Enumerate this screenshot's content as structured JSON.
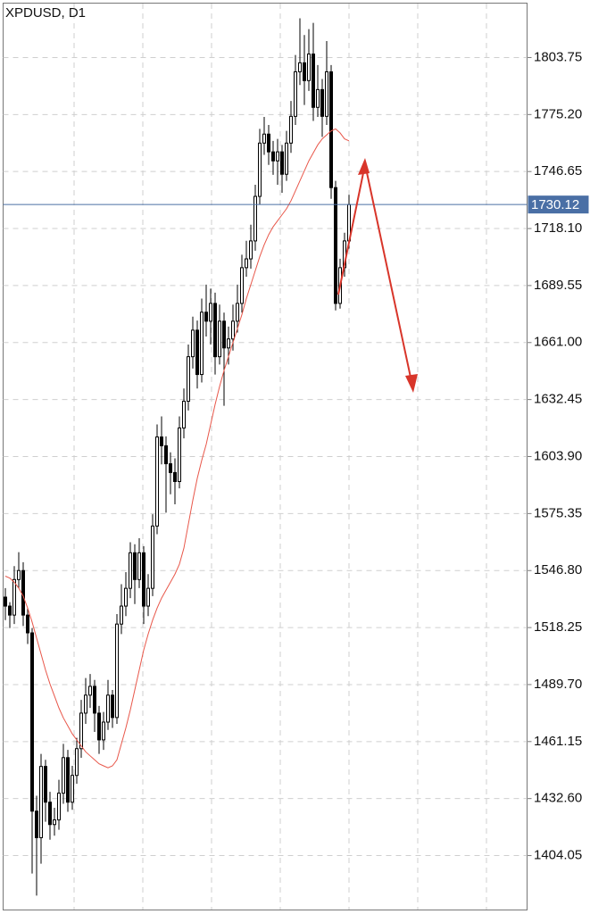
{
  "chart_data": {
    "type": "candlestick",
    "title": "XPDUSD, D1",
    "open": [
      1533.5,
      1529.0,
      1524.5,
      1542.3,
      1546.8,
      1524.5,
      1515.6,
      1426.3,
      1413.0,
      1448.7,
      1430.8,
      1419.6,
      1421.9,
      1435.3,
      1453.1,
      1430.8,
      1444.2,
      1457.6,
      1475.4,
      1484.4,
      1488.8,
      1475.4,
      1462.0,
      1470.9,
      1484.4,
      1473.2,
      1520.0,
      1529.0,
      1537.9,
      1555.7,
      1542.3,
      1555.7,
      1529.0,
      1537.9,
      1569.1,
      1613.7,
      1609.3,
      1600.3,
      1595.9,
      1591.4,
      1618.2,
      1631.6,
      1653.9,
      1667.2,
      1645.0,
      1676.2,
      1671.7,
      1680.6,
      1653.9,
      1671.7,
      1658.3,
      1662.8,
      1671.7,
      1680.6,
      1698.5,
      1702.9,
      1711.9,
      1734.2,
      1760.9,
      1765.4,
      1756.5,
      1752.0,
      1756.5,
      1745.3,
      1760.9,
      1774.3,
      1796.6,
      1801.1,
      1792.2,
      1805.5,
      1778.8,
      1787.7,
      1774.3,
      1796.6,
      1738.6,
      1680.6,
      1698.5,
      1711.9
    ],
    "high": [
      1538.0,
      1531.0,
      1549.0,
      1556.0,
      1551.0,
      1528.0,
      1518.0,
      1434.0,
      1455.0,
      1452.0,
      1436.0,
      1428.0,
      1442.0,
      1460.0,
      1457.0,
      1449.0,
      1463.0,
      1482.0,
      1493.0,
      1495.0,
      1492.0,
      1479.0,
      1476.0,
      1492.0,
      1487.0,
      1525.0,
      1540.0,
      1546.0,
      1561.0,
      1560.0,
      1563.0,
      1559.0,
      1545.0,
      1575.0,
      1620.0,
      1624.0,
      1614.0,
      1606.0,
      1603.0,
      1624.0,
      1638.0,
      1660.0,
      1674.0,
      1672.0,
      1683.0,
      1690.0,
      1688.0,
      1686.0,
      1680.0,
      1676.0,
      1669.0,
      1680.0,
      1690.0,
      1705.0,
      1712.0,
      1720.0,
      1740.0,
      1768.0,
      1774.0,
      1770.0,
      1762.0,
      1763.0,
      1760.0,
      1767.0,
      1782.0,
      1805.0,
      1823.4,
      1815.0,
      1818.0,
      1821.1,
      1800.0,
      1793.0,
      1812.0,
      1800.0,
      1742.0,
      1703.0,
      1716.0,
      1735.0
    ],
    "low": [
      1522.0,
      1518.0,
      1520.0,
      1538.0,
      1519.0,
      1510.0,
      1395.1,
      1384.0,
      1400.0,
      1421.0,
      1412.0,
      1414.0,
      1417.0,
      1430.0,
      1426.0,
      1427.0,
      1440.0,
      1453.0,
      1470.0,
      1478.0,
      1466.0,
      1455.0,
      1457.0,
      1467.0,
      1468.0,
      1470.0,
      1515.0,
      1524.0,
      1533.0,
      1530.0,
      1538.0,
      1520.0,
      1524.0,
      1534.0,
      1565.0,
      1600.0,
      1575.8,
      1585.0,
      1580.0,
      1588.0,
      1613.0,
      1627.0,
      1648.0,
      1638.0,
      1641.0,
      1664.0,
      1660.0,
      1645.0,
      1650.0,
      1629.3,
      1650.0,
      1657.0,
      1666.0,
      1676.0,
      1694.0,
      1698.0,
      1707.0,
      1730.0,
      1755.0,
      1750.0,
      1745.0,
      1740.0,
      1736.0,
      1742.0,
      1756.0,
      1770.0,
      1790.0,
      1780.0,
      1787.0,
      1772.0,
      1774.0,
      1764.0,
      1770.0,
      1733.0,
      1677.1,
      1678.0,
      1694.0,
      1708.0
    ],
    "close": [
      1529.0,
      1524.5,
      1542.3,
      1546.8,
      1524.5,
      1515.6,
      1426.3,
      1413.0,
      1448.7,
      1430.8,
      1419.6,
      1421.9,
      1435.3,
      1453.1,
      1430.8,
      1444.2,
      1457.6,
      1475.4,
      1484.4,
      1488.8,
      1475.4,
      1462.0,
      1470.9,
      1484.4,
      1473.2,
      1520.0,
      1529.0,
      1537.9,
      1555.7,
      1542.3,
      1555.7,
      1529.0,
      1537.9,
      1569.1,
      1613.7,
      1609.3,
      1600.3,
      1595.9,
      1591.4,
      1618.2,
      1631.6,
      1653.9,
      1667.2,
      1645.0,
      1676.2,
      1671.7,
      1680.6,
      1653.9,
      1671.7,
      1658.3,
      1662.8,
      1671.7,
      1680.6,
      1698.5,
      1702.9,
      1711.9,
      1734.2,
      1760.9,
      1765.4,
      1756.5,
      1752.0,
      1756.5,
      1745.3,
      1760.9,
      1774.3,
      1796.6,
      1801.1,
      1792.2,
      1805.5,
      1778.8,
      1787.7,
      1774.3,
      1796.6,
      1738.6,
      1680.6,
      1698.5,
      1711.9,
      1730.12
    ],
    "moving_average": {
      "color": "#e8574a",
      "values": [
        1544,
        1543,
        1541,
        1538,
        1534,
        1528,
        1521,
        1513,
        1505,
        1497,
        1490,
        1484,
        1478,
        1473,
        1469,
        1465,
        1462,
        1459,
        1456,
        1454,
        1452,
        1450,
        1449,
        1448,
        1449,
        1452,
        1460,
        1468,
        1477,
        1487,
        1497,
        1507,
        1515,
        1522,
        1528,
        1533,
        1537,
        1541,
        1545,
        1550,
        1558,
        1570,
        1582,
        1593,
        1602,
        1610,
        1620,
        1630,
        1639,
        1647,
        1654,
        1661,
        1668,
        1675,
        1683,
        1690,
        1697,
        1704,
        1710,
        1715,
        1719,
        1722,
        1725,
        1728,
        1732,
        1737,
        1742,
        1747,
        1752,
        1756,
        1760,
        1763,
        1765,
        1767,
        1768,
        1766,
        1763,
        1762
      ]
    },
    "up_color": "#ffffff",
    "down_color": "#000000",
    "last_price": 1730.12,
    "last_price_color": "#4a6fa5",
    "ylim": [
      1376.8,
      1831.0
    ],
    "yticks": [
      1404.05,
      {
        "value": 1432.6,
        "label": "1432.60"
      },
      {
        "value": 1461.15,
        "label": "1461.15"
      },
      {
        "value": 1489.7,
        "label": "1489.70"
      },
      1518.25,
      {
        "value": 1546.8,
        "label": "1546.80"
      },
      1575.35,
      {
        "value": 1603.9,
        "label": "1603.90"
      },
      1632.45,
      {
        "value": 1661,
        "label": "1661.00"
      },
      1689.55,
      {
        "value": 1718.1,
        "label": "1718.10"
      },
      1746.65,
      {
        "value": 1775.2,
        "label": "1775.20"
      },
      1803.75
    ],
    "grid": true
  }
}
